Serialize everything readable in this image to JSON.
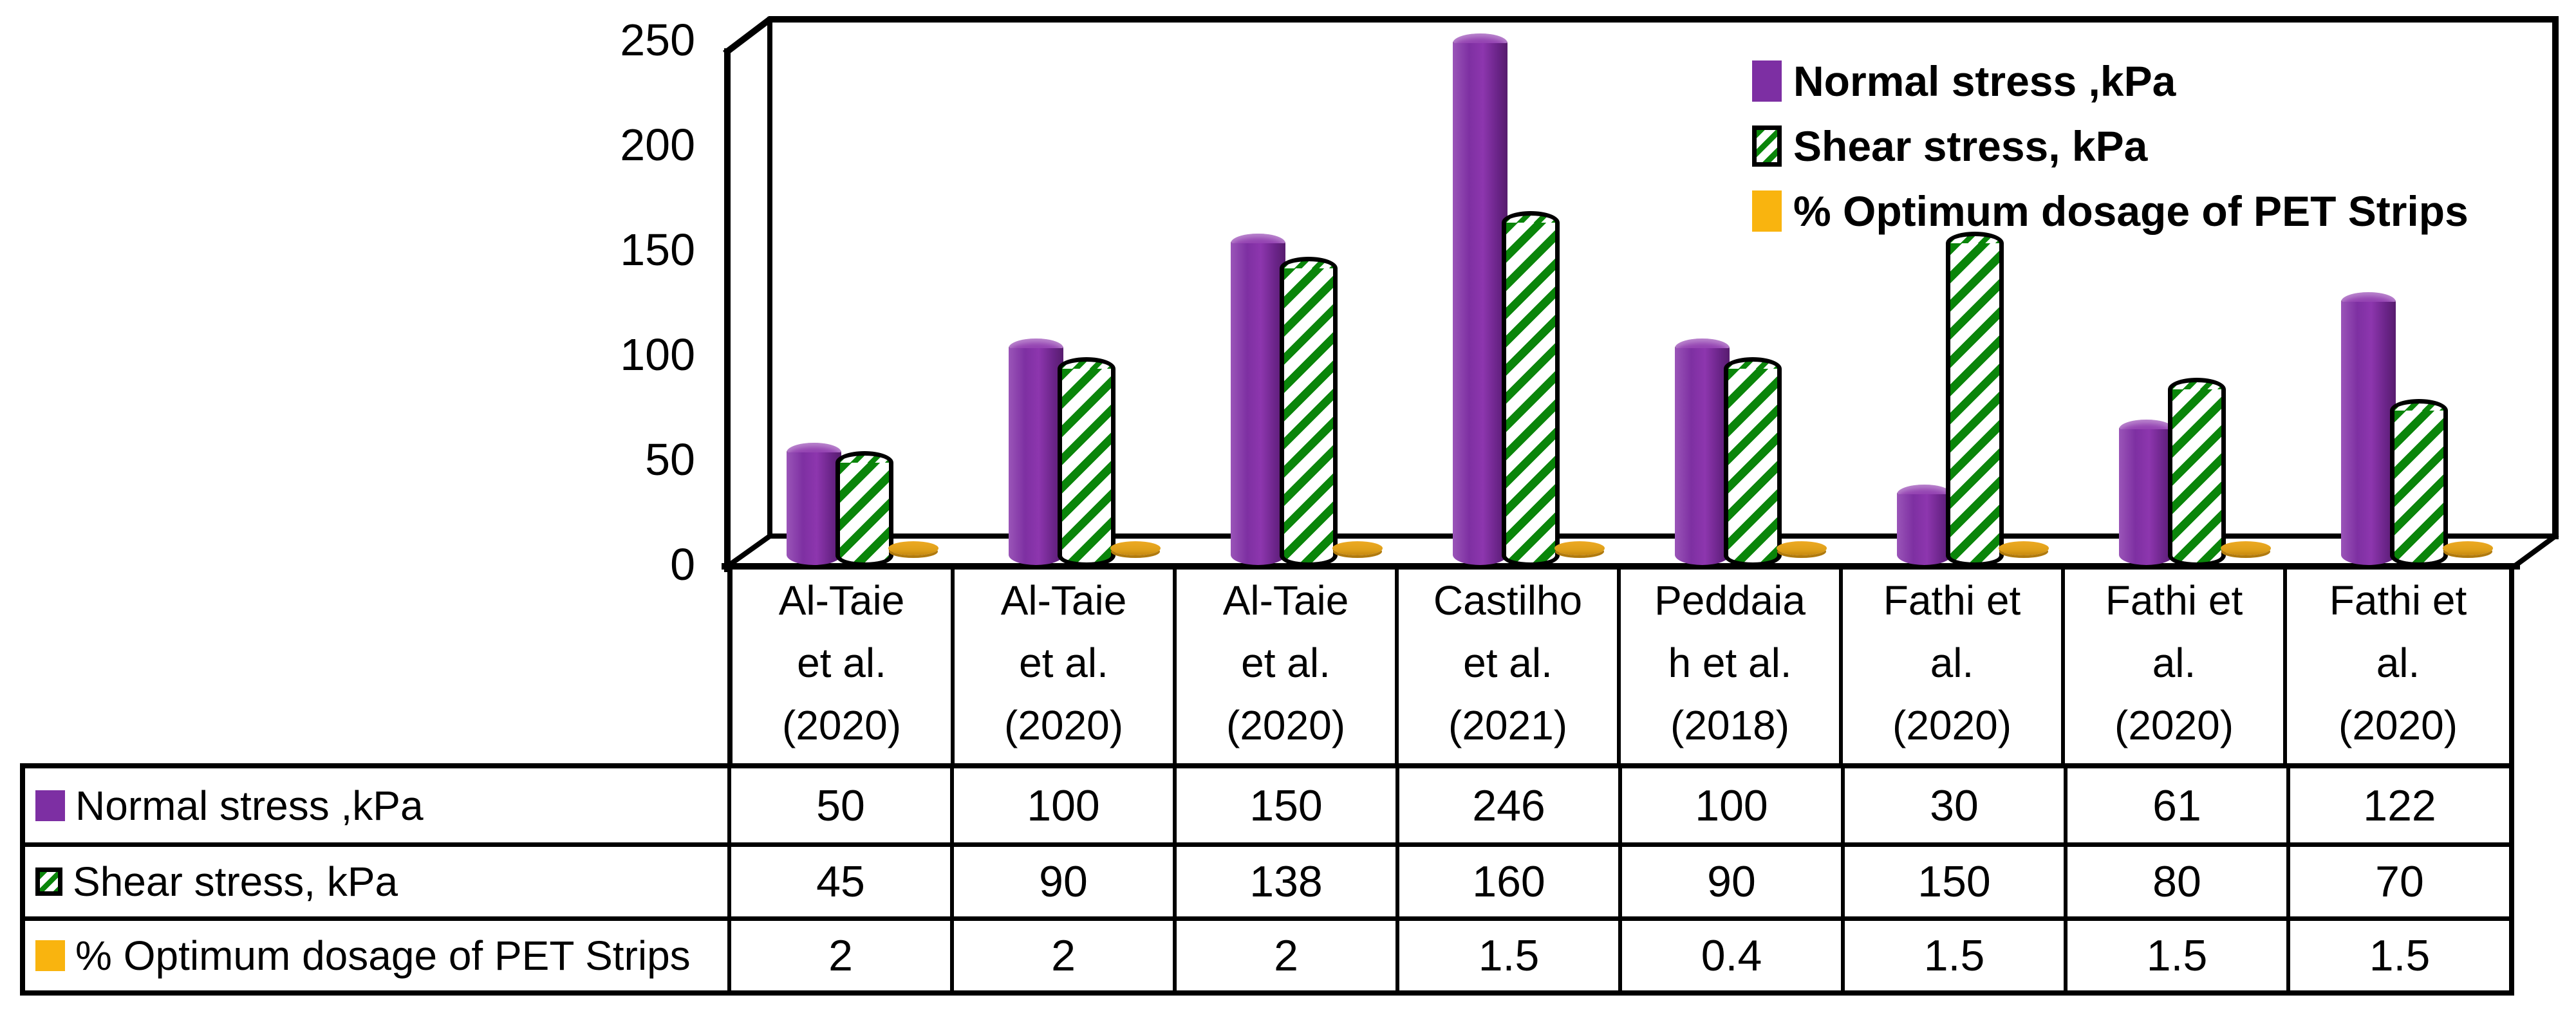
{
  "chart_data": {
    "type": "bar",
    "bar_style": "3d-cylinder",
    "title": "",
    "xlabel": "",
    "ylabel": "",
    "ylim": [
      0,
      250
    ],
    "yticks": [
      0,
      50,
      100,
      150,
      200,
      250
    ],
    "grid": false,
    "legend_position": "top-right",
    "categories": [
      "Al-Taie et al. (2020)",
      "Al-Taie et al. (2020)",
      "Al-Taie et al. (2020)",
      "Castilho et al. (2021)",
      "Peddaiah et al. (2018)",
      "Fathi et al. (2020)",
      "Fathi et al. (2020)",
      "Fathi et al. (2020)"
    ],
    "category_display_lines": [
      [
        "Al-Taie",
        "et al.",
        "(2020)"
      ],
      [
        "Al-Taie",
        "et al.",
        "(2020)"
      ],
      [
        "Al-Taie",
        "et al.",
        "(2020)"
      ],
      [
        "Castilho",
        "et al.",
        "(2021)"
      ],
      [
        "Peddaia",
        "h et al.",
        "(2018)"
      ],
      [
        "Fathi et",
        "al.",
        "(2020)"
      ],
      [
        "Fathi et",
        "al.",
        "(2020)"
      ],
      [
        "Fathi et",
        "al.",
        "(2020)"
      ]
    ],
    "series": [
      {
        "name": "Normal stress ,kPa",
        "color": "#7D2FA3",
        "values": [
          50,
          100,
          150,
          246,
          100,
          30,
          61,
          122
        ]
      },
      {
        "name": "Shear stress, kPa",
        "color": "#0A850A",
        "fill": "white-with-green-diagonal-stripes",
        "values": [
          45,
          90,
          138,
          160,
          90,
          150,
          80,
          70
        ]
      },
      {
        "name": "% Optimum dosage of PET Strips",
        "color": "#E8A61F",
        "values": [
          2,
          2,
          2,
          1.5,
          0.4,
          1.5,
          1.5,
          1.5
        ]
      }
    ]
  },
  "legend": {
    "items": [
      {
        "label": "Normal stress ,kPa",
        "swatch": "purple-solid"
      },
      {
        "label": "Shear stress, kPa",
        "swatch": "green-striped"
      },
      {
        "label": "% Optimum dosage of PET Strips",
        "swatch": "gold-solid"
      }
    ]
  },
  "table": {
    "row_labels": [
      "Normal stress ,kPa",
      "Shear stress, kPa",
      "% Optimum dosage of PET Strips"
    ],
    "rows": [
      [
        "50",
        "100",
        "150",
        "246",
        "100",
        "30",
        "61",
        "122"
      ],
      [
        "45",
        "90",
        "138",
        "160",
        "90",
        "150",
        "80",
        "70"
      ],
      [
        "2",
        "2",
        "2",
        "1.5",
        "0.4",
        "1.5",
        "1.5",
        "1.5"
      ]
    ]
  },
  "colors": {
    "purple": "#7D2FA3",
    "green_stripe": "#0A850A",
    "gold": "#E8A61F",
    "frame": "#000000"
  }
}
